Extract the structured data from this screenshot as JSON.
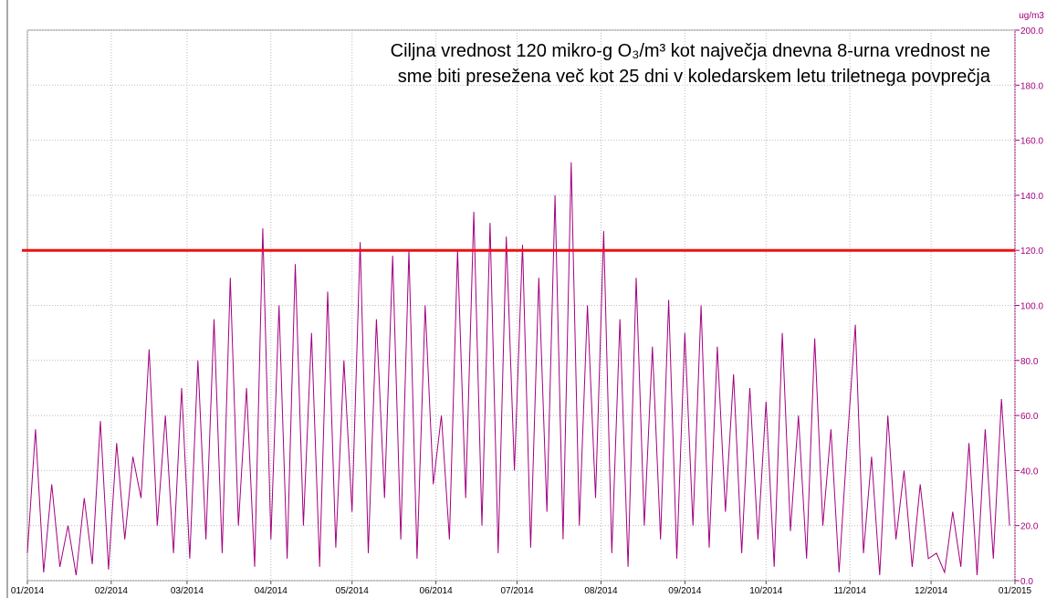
{
  "chart_data": {
    "type": "line",
    "annotation": [
      "Ciljna vrednost 120 mikro-g O₃/m³ kot največja dnevna 8-urna vrednost ne",
      "sme biti presežena več kot 25 dni v koledarskem letu triletnega povprečja"
    ],
    "y_label": "ug/m3",
    "threshold": 120,
    "threshold_color": "#ee1111",
    "x": [
      0,
      3,
      6,
      9,
      12,
      15,
      18,
      21,
      24,
      27,
      30,
      33,
      36,
      39,
      42,
      45,
      48,
      51,
      54,
      57,
      60,
      63,
      66,
      69,
      72,
      75,
      78,
      81,
      84,
      87,
      90,
      93,
      96,
      99,
      102,
      105,
      108,
      111,
      114,
      117,
      120,
      123,
      126,
      129,
      132,
      135,
      138,
      141,
      144,
      147,
      150,
      153,
      156,
      159,
      162,
      165,
      168,
      171,
      174,
      177,
      180,
      183,
      186,
      189,
      192,
      195,
      198,
      201,
      204,
      207,
      210,
      213,
      216,
      219,
      222,
      225,
      228,
      231,
      234,
      237,
      240,
      243,
      246,
      249,
      252,
      255,
      258,
      261,
      264,
      267,
      270,
      273,
      276,
      279,
      282,
      285,
      288,
      291,
      294,
      297,
      300,
      303,
      306,
      309,
      312,
      315,
      318,
      321,
      324,
      327,
      330,
      333,
      336,
      339,
      342,
      345,
      348,
      351,
      354,
      357,
      360,
      363
    ],
    "series": [
      {
        "color": "#a3007f",
        "values": [
          10,
          55,
          3,
          35,
          5,
          20,
          2,
          30,
          6,
          58,
          4,
          50,
          15,
          45,
          30,
          84,
          20,
          60,
          10,
          70,
          8,
          80,
          15,
          95,
          10,
          110,
          20,
          70,
          5,
          128,
          15,
          100,
          8,
          115,
          20,
          90,
          5,
          105,
          12,
          80,
          25,
          123,
          10,
          95,
          30,
          118,
          15,
          120,
          8,
          100,
          35,
          60,
          15,
          120,
          30,
          134,
          20,
          130,
          10,
          125,
          40,
          122,
          12,
          110,
          25,
          140,
          15,
          152,
          20,
          100,
          30,
          127,
          10,
          95,
          5,
          110,
          20,
          85,
          15,
          102,
          8,
          90,
          20,
          100,
          12,
          85,
          25,
          75,
          10,
          70,
          15,
          65,
          5,
          90,
          18,
          60,
          8,
          88,
          20,
          55,
          3,
          50,
          93,
          10,
          45,
          2,
          60,
          15,
          40,
          5,
          35,
          8,
          10,
          3,
          25,
          5,
          50,
          2,
          55,
          8,
          66,
          20
        ]
      }
    ],
    "xlim": [
      0,
      365
    ],
    "xticks": [
      {
        "value": 0,
        "label": "01/2014"
      },
      {
        "value": 31,
        "label": "02/2014"
      },
      {
        "value": 59,
        "label": "03/2014"
      },
      {
        "value": 90,
        "label": "04/2014"
      },
      {
        "value": 120,
        "label": "05/2014"
      },
      {
        "value": 151,
        "label": "06/2014"
      },
      {
        "value": 181,
        "label": "07/2014"
      },
      {
        "value": 212,
        "label": "08/2014"
      },
      {
        "value": 243,
        "label": "09/2014"
      },
      {
        "value": 273,
        "label": "10/2014"
      },
      {
        "value": 304,
        "label": "11/2014"
      },
      {
        "value": 334,
        "label": "12/2014"
      },
      {
        "value": 365,
        "label": "01/2015"
      }
    ],
    "ylim": [
      0,
      200
    ],
    "yticks": [
      {
        "value": 0,
        "label": "0.0"
      },
      {
        "value": 20,
        "label": "20.0"
      },
      {
        "value": 40,
        "label": "40.0"
      },
      {
        "value": 60,
        "label": "60.0"
      },
      {
        "value": 80,
        "label": "80.0"
      },
      {
        "value": 100,
        "label": "100.0"
      },
      {
        "value": 120,
        "label": "120.0"
      },
      {
        "value": 140,
        "label": "140.0"
      },
      {
        "value": 160,
        "label": "160.0"
      },
      {
        "value": 180,
        "label": "180.0"
      },
      {
        "value": 200,
        "label": "200.0"
      }
    ],
    "axis_color": "#a3007f",
    "grid": true
  }
}
